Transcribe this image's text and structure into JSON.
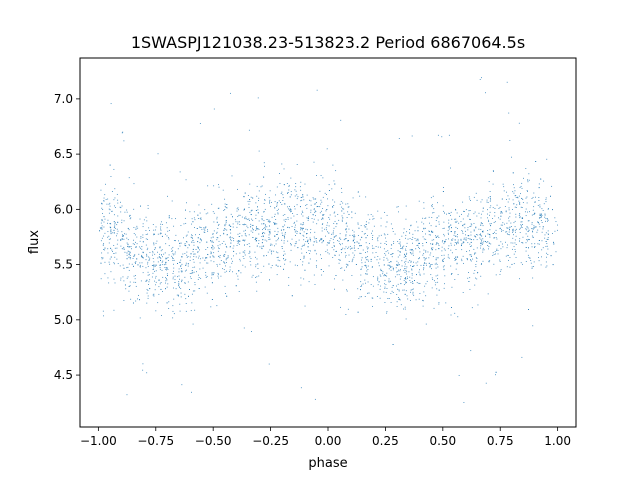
{
  "chart_data": {
    "type": "scatter",
    "title": "1SWASPJ121038.23-513823.2 Period 6867064.5s",
    "xlabel": "phase",
    "ylabel": "flux",
    "xlim": [
      -1.08,
      1.08
    ],
    "ylim": [
      4.03,
      7.37
    ],
    "grid": false,
    "legend": "none",
    "marker_color": "#1f77b4",
    "x_ticks": [
      {
        "value": -1.0,
        "label": "−1.00"
      },
      {
        "value": -0.75,
        "label": "−0.75"
      },
      {
        "value": -0.5,
        "label": "−0.50"
      },
      {
        "value": -0.25,
        "label": "−0.25"
      },
      {
        "value": 0.0,
        "label": "0.00"
      },
      {
        "value": 0.25,
        "label": "0.25"
      },
      {
        "value": 0.5,
        "label": "0.50"
      },
      {
        "value": 0.75,
        "label": "0.75"
      },
      {
        "value": 1.0,
        "label": "1.00"
      }
    ],
    "y_ticks": [
      {
        "value": 4.5,
        "label": "4.5"
      },
      {
        "value": 5.0,
        "label": "5.0"
      },
      {
        "value": 5.5,
        "label": "5.5"
      },
      {
        "value": 6.0,
        "label": "6.0"
      },
      {
        "value": 6.5,
        "label": "6.5"
      },
      {
        "value": 7.0,
        "label": "7.0"
      }
    ],
    "light_curve": {
      "phase": [
        0.0,
        0.05,
        0.1,
        0.15,
        0.2,
        0.25,
        0.3,
        0.35,
        0.4,
        0.45,
        0.5,
        0.55,
        0.6,
        0.65,
        0.7,
        0.75,
        0.8,
        0.85,
        0.9,
        0.95,
        1.0
      ],
      "median_flux": [
        5.82,
        5.78,
        5.7,
        5.6,
        5.55,
        5.52,
        5.5,
        5.52,
        5.58,
        5.62,
        5.65,
        5.68,
        5.72,
        5.75,
        5.8,
        5.83,
        5.87,
        5.88,
        5.86,
        5.84,
        5.82
      ],
      "scatter_sd": 0.22,
      "outlier_range": [
        4.2,
        7.2
      ],
      "mirrored": true
    }
  }
}
